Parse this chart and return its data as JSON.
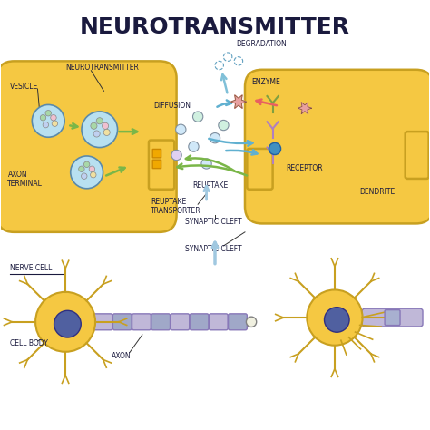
{
  "title": "NEUROTRANSMITTER",
  "title_fontsize": 18,
  "title_fontweight": "bold",
  "bg_color": "#ffffff",
  "axon_terminal_color": "#f5c842",
  "axon_terminal_outline": "#c8a020",
  "vesicle_fill": "#b8e0f0",
  "vesicle_outline": "#5a8aaa",
  "neurotransmitter_colors": [
    "#a8d8a8",
    "#f0c0d0",
    "#c0d0f0",
    "#f0e0a0"
  ],
  "arrow_green": "#7ab648",
  "arrow_red": "#e86060",
  "labels": {
    "neurotransmitter": "NEUROTRANSMITTER",
    "vesicle": "VESICLE",
    "axon_terminal": "AXON\nTERMINAL",
    "diffusion": "DIFFUSION",
    "degradation": "DEGRADATION",
    "enzyme": "ENZYME",
    "reuptake": "REUPTAKE",
    "reuptake_transporter": "REUPTAKE\nTRANSPORTER",
    "receptor": "RECEPTOR",
    "dendrite": "DENDRITE",
    "nerve_cell": "NERVE CELL",
    "cell_body": "CELL BODY",
    "axon": "AXON",
    "synaptic_cleft": "SYNAPTIC CLEFT"
  },
  "label_fontsize": 6,
  "small_fontsize": 5.5
}
